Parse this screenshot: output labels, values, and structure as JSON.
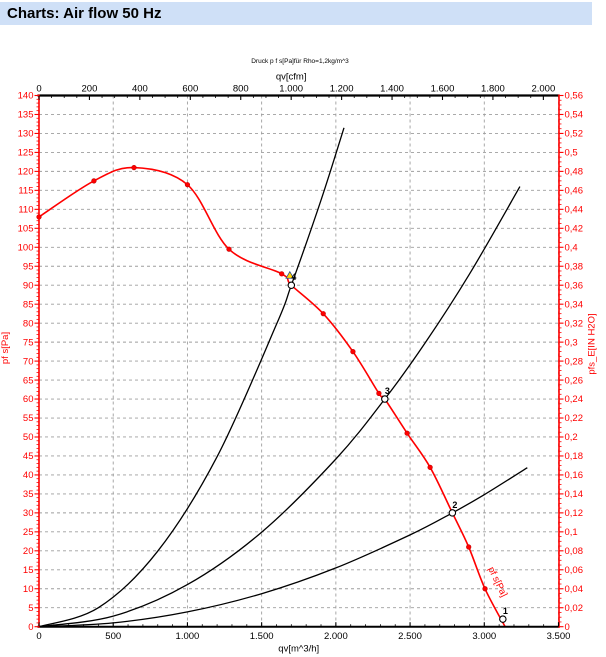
{
  "page": {
    "title": "Charts: Air flow 50 Hz"
  },
  "colors": {
    "titlebar_bg": "#cfe0f7",
    "accent_red": "#ff0000",
    "grid": "#9e9e9e",
    "axis_black": "#000000",
    "warning_fill": "#ffd400",
    "warning_edge": "#2a4a8a"
  },
  "chart_data": {
    "type": "line",
    "subtitle": "Druck p f s[Pa]für Rho=1,2kg/m^3",
    "flow_conversion_cfm_to_m3h": 1.699,
    "axes": {
      "top": {
        "label": "qv[cfm]",
        "min": 0,
        "max": 2000,
        "major_step": 200,
        "minor_step": 50,
        "tick_labels": [
          "0",
          "200",
          "400",
          "600",
          "800",
          "1.000",
          "1.200",
          "1.400",
          "1.600",
          "1.800",
          "2.000"
        ],
        "color": "#000000"
      },
      "bottom": {
        "label": "qv[m^3/h]",
        "min": 0,
        "max": 3500,
        "major_step": 500,
        "minor_step": 100,
        "tick_labels": [
          "0",
          "500",
          "1.000",
          "1.500",
          "2.000",
          "2.500",
          "3.000",
          "3.500"
        ],
        "color": "#000000"
      },
      "left": {
        "label": "pf s[Pa]",
        "min": 0,
        "max": 140,
        "major_step": 5,
        "minor_step": 1,
        "tick_labels": [
          "0",
          "5",
          "10",
          "15",
          "20",
          "25",
          "30",
          "35",
          "40",
          "45",
          "50",
          "55",
          "60",
          "65",
          "70",
          "75",
          "80",
          "85",
          "90",
          "95",
          "100",
          "105",
          "110",
          "115",
          "120",
          "125",
          "130",
          "135",
          "140"
        ],
        "color": "#ff0000"
      },
      "right": {
        "label": "pfs_E[IN H2O]",
        "min": 0,
        "max": 0.56,
        "major_step": 0.02,
        "minor_step": 0.005,
        "tick_labels": [
          "0",
          "0,02",
          "0,04",
          "0,06",
          "0,08",
          "0,1",
          "0,12",
          "0,14",
          "0,16",
          "0,18",
          "0,2",
          "0,22",
          "0,24",
          "0,26",
          "0,28",
          "0,3",
          "0,32",
          "0,34",
          "0,36",
          "0,38",
          "0,4",
          "0,42",
          "0,44",
          "0,46",
          "0,48",
          "0,5",
          "0,52",
          "0,54",
          "0,56"
        ],
        "color": "#ff0000"
      }
    },
    "series": [
      {
        "name": "fan-pressure-curve",
        "color": "#ff0000",
        "width": 1.6,
        "smooth": true,
        "points": [
          [
            0,
            108
          ],
          [
            370,
            117.5
          ],
          [
            640,
            121
          ],
          [
            1000,
            116.5
          ],
          [
            1280,
            99.5
          ],
          [
            1635,
            93
          ],
          [
            1700,
            90
          ],
          [
            1915,
            82.5
          ],
          [
            2115,
            72.5
          ],
          [
            2290,
            61.5
          ],
          [
            2330,
            60
          ],
          [
            2480,
            51
          ],
          [
            2635,
            42
          ],
          [
            2785,
            30
          ],
          [
            2895,
            21
          ],
          [
            3005,
            10
          ],
          [
            3140,
            0
          ]
        ],
        "markers": [
          [
            0,
            108
          ],
          [
            370,
            117.5
          ],
          [
            640,
            121
          ],
          [
            1000,
            116.5
          ],
          [
            1280,
            99.5
          ],
          [
            1635,
            93
          ],
          [
            1915,
            82.5
          ],
          [
            2115,
            72.5
          ],
          [
            2290,
            61.5
          ],
          [
            2480,
            51
          ],
          [
            2635,
            42
          ],
          [
            2895,
            21
          ],
          [
            3005,
            10
          ]
        ]
      },
      {
        "name": "system-curve-4",
        "color": "#000000",
        "width": 1.3,
        "smooth": true,
        "points": [
          [
            0,
            0
          ],
          [
            400,
            5
          ],
          [
            800,
            19.9
          ],
          [
            1200,
            44.8
          ],
          [
            1600,
            79.7
          ],
          [
            1700,
            90
          ],
          [
            1900,
            112.4
          ],
          [
            2055,
            131.5
          ]
        ]
      },
      {
        "name": "system-curve-3",
        "color": "#000000",
        "width": 1.3,
        "smooth": true,
        "points": [
          [
            0,
            0
          ],
          [
            500,
            2.8
          ],
          [
            1000,
            11.1
          ],
          [
            1500,
            24.9
          ],
          [
            2000,
            44.2
          ],
          [
            2330,
            60
          ],
          [
            2600,
            74.7
          ],
          [
            2900,
            92.9
          ],
          [
            3240,
            116
          ]
        ]
      },
      {
        "name": "system-curve-2",
        "color": "#000000",
        "width": 1.3,
        "smooth": true,
        "points": [
          [
            0,
            0
          ],
          [
            500,
            1
          ],
          [
            1000,
            3.9
          ],
          [
            1500,
            8.7
          ],
          [
            2000,
            15.5
          ],
          [
            2500,
            24.2
          ],
          [
            2785,
            30
          ],
          [
            3000,
            34.8
          ],
          [
            3290,
            41.9
          ]
        ]
      }
    ],
    "operating_points": [
      {
        "label": "1",
        "q": 3125,
        "p": 2
      },
      {
        "label": "2",
        "q": 2785,
        "p": 30
      },
      {
        "label": "3",
        "q": 2330,
        "p": 60
      },
      {
        "label": "4",
        "q": 1700,
        "p": 90,
        "warning_icon": true
      }
    ],
    "curve_label": {
      "text": "pf s[Pa]",
      "q": 3072,
      "p": 11.5,
      "angle": 64
    }
  }
}
